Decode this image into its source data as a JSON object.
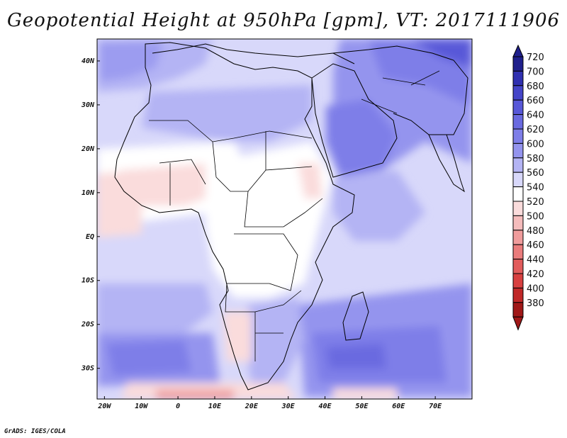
{
  "title": "Geopotential Height at 950hPa [gpm], VT: 2017111906",
  "credit": "GrADS: IGES/COLA",
  "map": {
    "variable": "Geopotential Height",
    "level": "950hPa",
    "units": "gpm",
    "valid_time": "2017111906",
    "lon_range": [
      -22,
      80
    ],
    "lat_range": [
      -37,
      45
    ],
    "lon_ticks": [
      {
        "value": -20,
        "label": "20W"
      },
      {
        "value": -10,
        "label": "10W"
      },
      {
        "value": 0,
        "label": "0"
      },
      {
        "value": 10,
        "label": "10E"
      },
      {
        "value": 20,
        "label": "20E"
      },
      {
        "value": 30,
        "label": "30E"
      },
      {
        "value": 40,
        "label": "40E"
      },
      {
        "value": 50,
        "label": "50E"
      },
      {
        "value": 60,
        "label": "60E"
      },
      {
        "value": 70,
        "label": "70E"
      }
    ],
    "lat_ticks": [
      {
        "value": 40,
        "label": "40N"
      },
      {
        "value": 30,
        "label": "30N"
      },
      {
        "value": 20,
        "label": "20N"
      },
      {
        "value": 10,
        "label": "10N"
      },
      {
        "value": 0,
        "label": "EQ"
      },
      {
        "value": -10,
        "label": "10S"
      },
      {
        "value": -20,
        "label": "20S"
      },
      {
        "value": -30,
        "label": "30S"
      }
    ]
  },
  "colorbar": {
    "labels": [
      "720",
      "700",
      "680",
      "660",
      "640",
      "620",
      "600",
      "580",
      "560",
      "540",
      "520",
      "500",
      "480",
      "460",
      "440",
      "420",
      "400",
      "380"
    ],
    "colors": [
      "#20208c",
      "#3030b0",
      "#4545c8",
      "#5858d8",
      "#6a6ae0",
      "#7e7ee8",
      "#9494ee",
      "#b4b4f4",
      "#d8d8fa",
      "#ffffff",
      "#fadcdc",
      "#f5bcbc",
      "#f09c9c",
      "#ea7c7c",
      "#e25c5c",
      "#d84040",
      "#c02828",
      "#a01818"
    ]
  },
  "style": {
    "ocean_base": "#d8d8fa",
    "land_base": "#ffffff",
    "border_color": "#000000"
  }
}
